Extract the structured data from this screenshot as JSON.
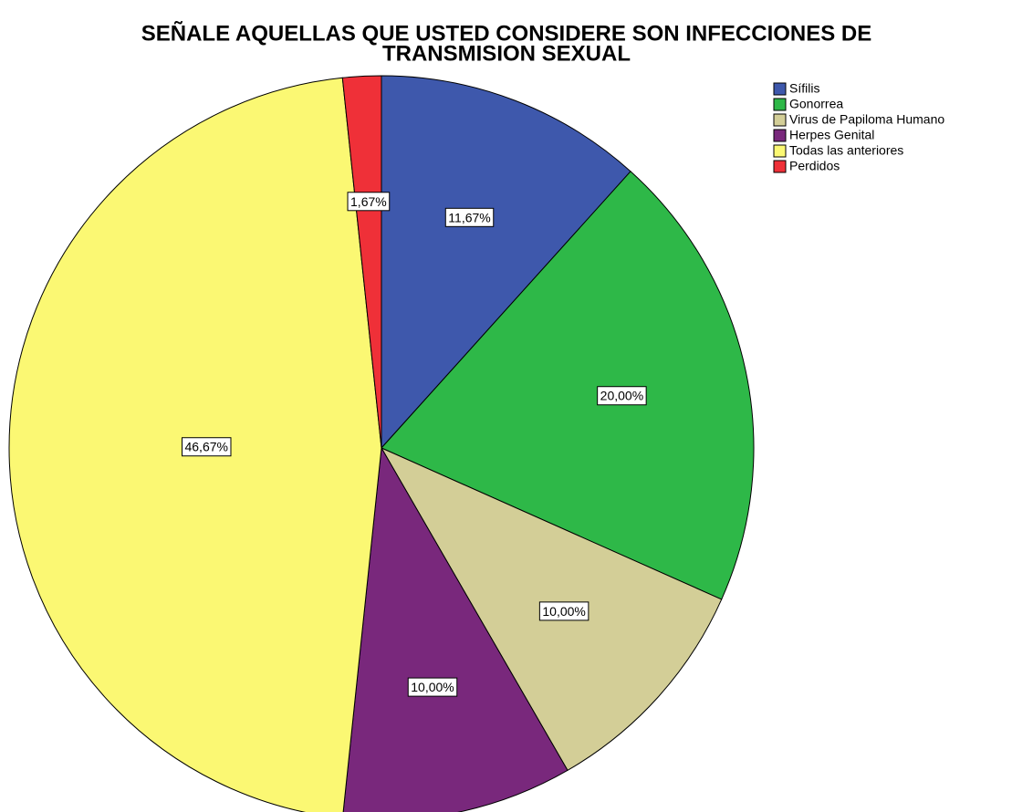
{
  "chart_data": {
    "type": "pie",
    "title": [
      "SEÑALE AQUELLAS QUE USTED CONSIDERE SON INFECCIONES DE",
      "TRANSMISION SEXUAL"
    ],
    "categories": [
      "Sífilis",
      "Gonorrea",
      "Virus de Papiloma Humano",
      "Herpes Genital",
      "Todas las  anteriores",
      "Perdidos"
    ],
    "values": [
      11.67,
      20.0,
      10.0,
      10.0,
      46.67,
      1.67
    ],
    "value_labels": [
      "11,67%",
      "20,00%",
      "10,00%",
      "10,00%",
      "46,67%",
      "1,67%"
    ],
    "colors": [
      "#3e58ac",
      "#2eb848",
      "#d3ce97",
      "#79287c",
      "#fbf873",
      "#ef3038"
    ],
    "legend": "top-right"
  }
}
